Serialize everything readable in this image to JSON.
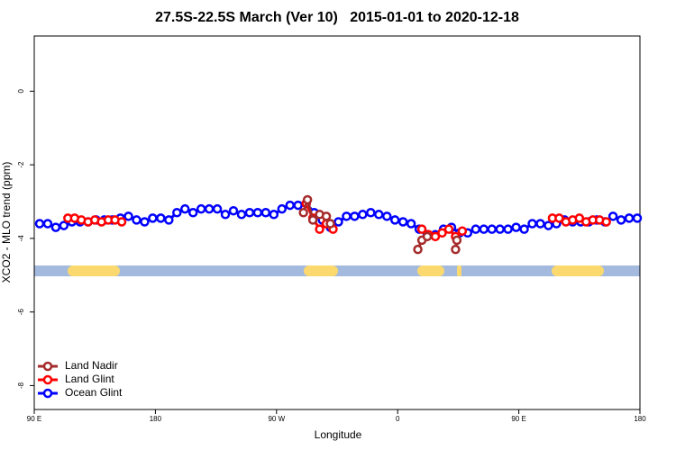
{
  "chart_data": {
    "type": "line",
    "title": "27.5S-22.5S March (Ver 10)   2015-01-01 to 2020-12-18",
    "xlabel": "Longitude",
    "ylabel": "XCO2 - MLO trend (ppm)",
    "xlim": [
      90,
      540
    ],
    "xticks": [
      {
        "value": 90,
        "label": "90 E"
      },
      180,
      {
        "value": 270,
        "label": "90 W"
      },
      {
        "value": 360,
        "label": "0"
      },
      {
        "value": 450,
        "label": "90 E"
      },
      {
        "value": 540,
        "label": "180"
      }
    ],
    "ylim": [
      -8.65,
      1.5
    ],
    "yticks": [
      0,
      -2,
      -4,
      -6,
      -8
    ],
    "legend": "bottomleft",
    "series": [
      {
        "name": "Land Nadir",
        "color": "#a52a2a",
        "x": [
          290,
          293,
          297,
          302,
          307,
          310,
          null,
          375,
          378,
          382,
          null,
          403,
          404
        ],
        "values": [
          -3.3,
          -2.95,
          -3.5,
          -3.35,
          -3.4,
          -3.6,
          null,
          -4.3,
          -4.05,
          -3.95,
          null,
          -4.3,
          -4.05
        ]
      },
      {
        "name": "Land Glint",
        "color": "#ff0000",
        "x": [
          115,
          120,
          125,
          130,
          135,
          140,
          145,
          150,
          155,
          null,
          292,
          297,
          302,
          307,
          312,
          null,
          378,
          383,
          388,
          393,
          398,
          403,
          408,
          null,
          475,
          480,
          485,
          490,
          495,
          500,
          505,
          510,
          515
        ],
        "values": [
          -3.45,
          -3.45,
          -3.5,
          -3.55,
          -3.5,
          -3.55,
          -3.5,
          -3.5,
          -3.55,
          null,
          -3.05,
          -3.45,
          -3.75,
          -3.6,
          -3.75,
          null,
          -3.75,
          -3.9,
          -3.95,
          -3.85,
          -3.75,
          -3.95,
          -3.8,
          null,
          -3.45,
          -3.45,
          -3.55,
          -3.5,
          -3.45,
          -3.55,
          -3.5,
          -3.5,
          -3.55
        ]
      },
      {
        "name": "Ocean Glint",
        "color": "#0000ff",
        "x": [
          94,
          100,
          106,
          112,
          118,
          124,
          130,
          136,
          142,
          148,
          154,
          160,
          166,
          172,
          178,
          184,
          190,
          196,
          202,
          208,
          214,
          220,
          226,
          232,
          238,
          244,
          250,
          256,
          262,
          268,
          274,
          280,
          286,
          292,
          298,
          304,
          310,
          316,
          322,
          328,
          334,
          340,
          346,
          352,
          358,
          364,
          370,
          376,
          382,
          388,
          394,
          400,
          406,
          412,
          418,
          424,
          430,
          436,
          442,
          448,
          454,
          460,
          466,
          472,
          478,
          484,
          490,
          496,
          502,
          508,
          514,
          520,
          526,
          532,
          538
        ],
        "values": [
          -3.6,
          -3.6,
          -3.7,
          -3.65,
          -3.55,
          -3.55,
          -3.55,
          -3.5,
          -3.5,
          -3.5,
          -3.45,
          -3.4,
          -3.5,
          -3.55,
          -3.45,
          -3.45,
          -3.5,
          -3.3,
          -3.2,
          -3.3,
          -3.2,
          -3.2,
          -3.2,
          -3.35,
          -3.25,
          -3.35,
          -3.3,
          -3.3,
          -3.3,
          -3.35,
          -3.2,
          -3.1,
          -3.1,
          -3.05,
          -3.3,
          -3.5,
          -3.7,
          -3.55,
          -3.4,
          -3.4,
          -3.35,
          -3.3,
          -3.35,
          -3.4,
          -3.5,
          -3.55,
          -3.6,
          -3.75,
          -3.9,
          -3.9,
          -3.75,
          -3.7,
          -3.85,
          -3.85,
          -3.75,
          -3.75,
          -3.75,
          -3.75,
          -3.75,
          -3.7,
          -3.75,
          -3.6,
          -3.6,
          -3.65,
          -3.6,
          -3.5,
          -3.55,
          -3.55,
          -3.55,
          -3.5,
          -3.55,
          -3.4,
          -3.5,
          -3.45,
          -3.45
        ]
      }
    ]
  }
}
